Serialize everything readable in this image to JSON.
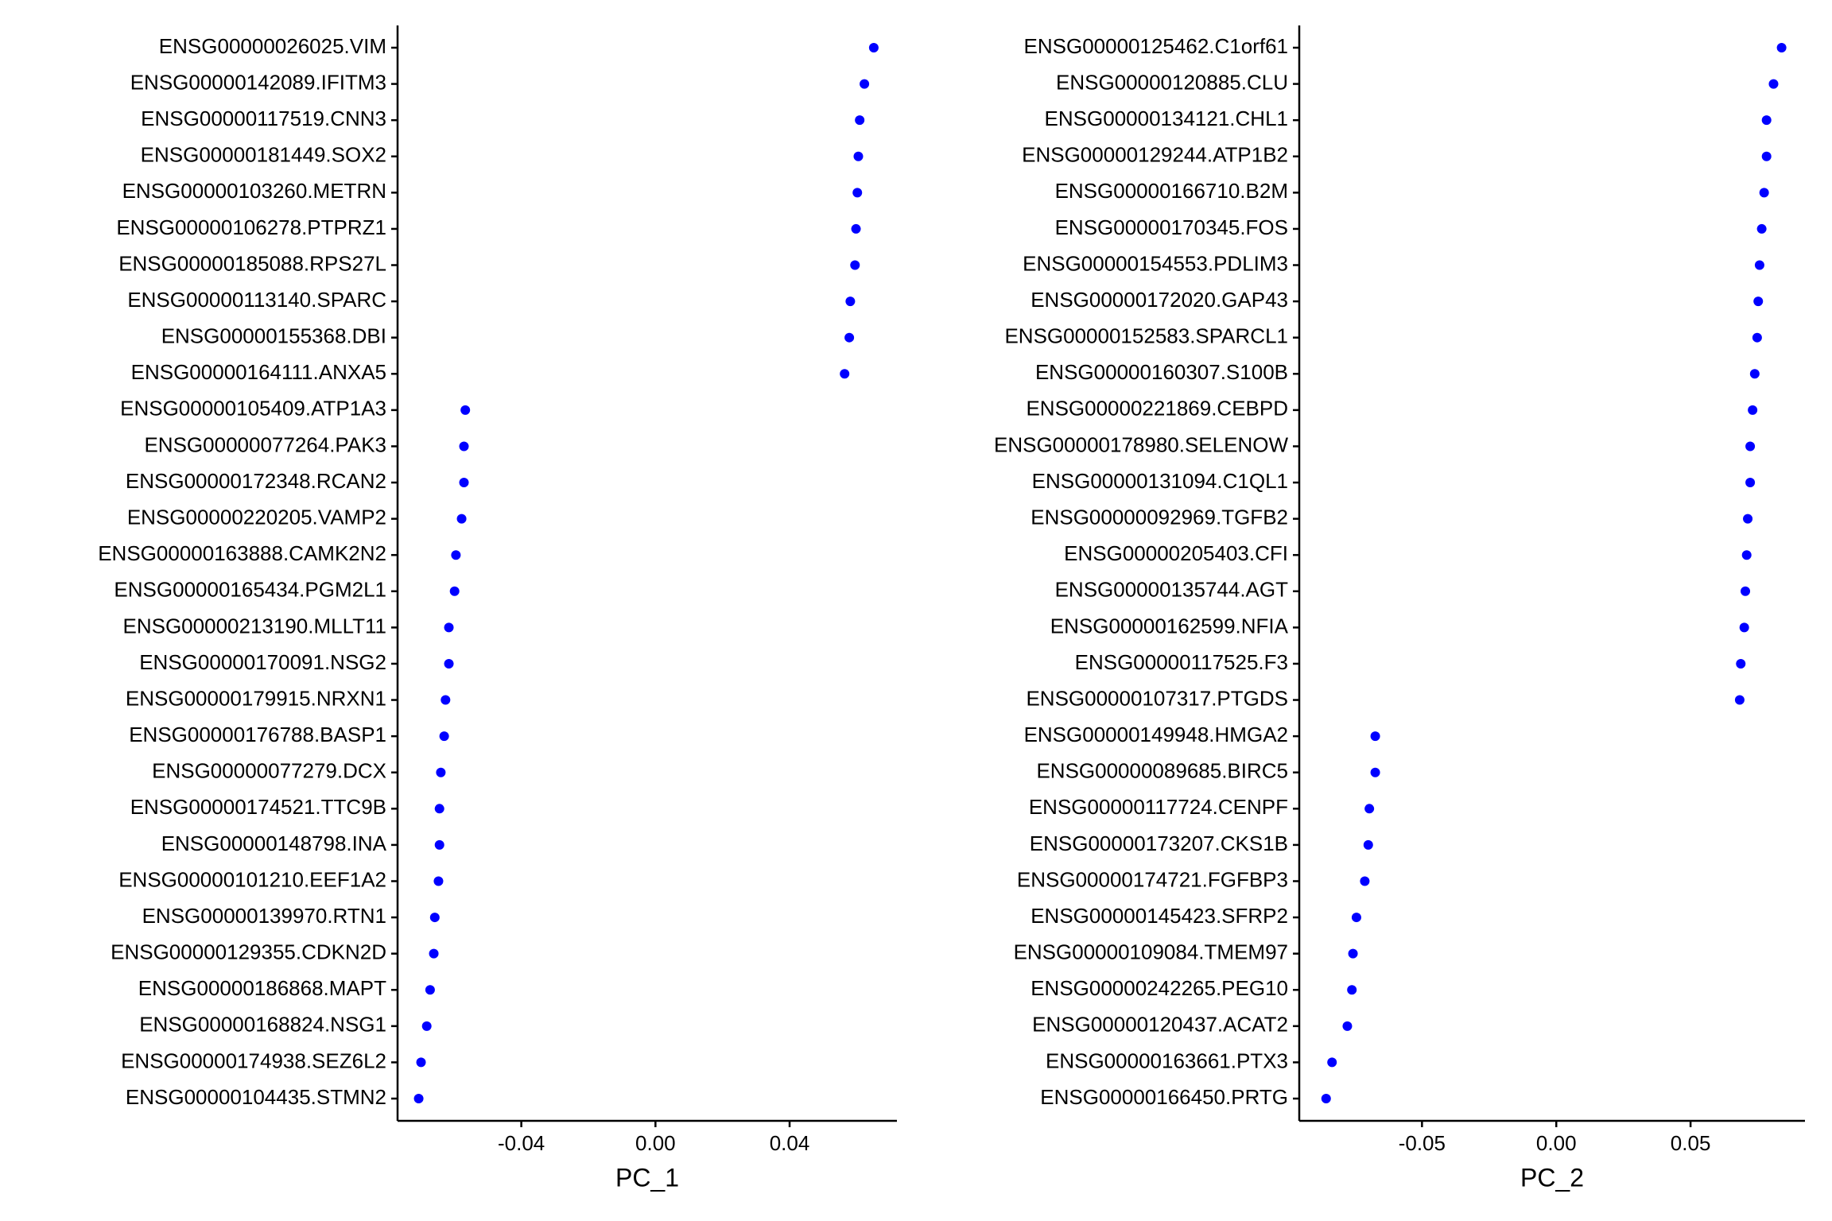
{
  "chart_data": [
    {
      "type": "dot",
      "x_label": "PC_1",
      "color": "#0000ff",
      "categories": [
        "ENSG00000026025.VIM",
        "ENSG00000142089.IFITM3",
        "ENSG00000117519.CNN3",
        "ENSG00000181449.SOX2",
        "ENSG00000103260.METRN",
        "ENSG00000106278.PTPRZ1",
        "ENSG00000185088.RPS27L",
        "ENSG00000113140.SPARC",
        "ENSG00000155368.DBI",
        "ENSG00000164111.ANXA5",
        "ENSG00000105409.ATP1A3",
        "ENSG00000077264.PAK3",
        "ENSG00000172348.RCAN2",
        "ENSG00000220205.VAMP2",
        "ENSG00000163888.CAMK2N2",
        "ENSG00000165434.PGM2L1",
        "ENSG00000213190.MLLT11",
        "ENSG00000170091.NSG2",
        "ENSG00000179915.NRXN1",
        "ENSG00000176788.BASP1",
        "ENSG00000077279.DCX",
        "ENSG00000174521.TTC9B",
        "ENSG00000148798.INA",
        "ENSG00000101210.EEF1A2",
        "ENSG00000139970.RTN1",
        "ENSG00000129355.CDKN2D",
        "ENSG00000186868.MAPT",
        "ENSG00000168824.NSG1",
        "ENSG00000174938.SEZ6L2",
        "ENSG00000104435.STMN2"
      ],
      "values": [
        0.0651,
        0.0623,
        0.0609,
        0.0605,
        0.0602,
        0.0598,
        0.0595,
        0.0581,
        0.0578,
        0.0564,
        -0.0567,
        -0.0571,
        -0.0571,
        -0.0578,
        -0.0595,
        -0.0599,
        -0.0616,
        -0.0616,
        -0.0626,
        -0.063,
        -0.064,
        -0.0644,
        -0.0644,
        -0.0647,
        -0.0658,
        -0.0661,
        -0.0672,
        -0.0682,
        -0.0699,
        -0.0706
      ],
      "xlim": [
        -0.0769,
        0.072
      ],
      "xticks": [
        -0.04,
        {
          "value": 0,
          "label": "0.00"
        },
        0.04
      ]
    },
    {
      "type": "dot",
      "x_label": "PC_2",
      "color": "#0000ff",
      "categories": [
        "ENSG00000125462.C1orf61",
        "ENSG00000120885.CLU",
        "ENSG00000134121.CHL1",
        "ENSG00000129244.ATP1B2",
        "ENSG00000166710.B2M",
        "ENSG00000170345.FOS",
        "ENSG00000154553.PDLIM3",
        "ENSG00000172020.GAP43",
        "ENSG00000152583.SPARCL1",
        "ENSG00000160307.S100B",
        "ENSG00000221869.CEBPD",
        "ENSG00000178980.SELENOW",
        "ENSG00000131094.C1QL1",
        "ENSG00000092969.TGFB2",
        "ENSG00000205403.CFI",
        "ENSG00000135744.AGT",
        "ENSG00000162599.NFIA",
        "ENSG00000117525.F3",
        "ENSG00000107317.PTGDS",
        "ENSG00000149948.HMGA2",
        "ENSG00000089685.BIRC5",
        "ENSG00000117724.CENPF",
        "ENSG00000173207.CKS1B",
        "ENSG00000174721.FGFBP3",
        "ENSG00000145423.SFRP2",
        "ENSG00000109084.TMEM97",
        "ENSG00000242265.PEG10",
        "ENSG00000120437.ACAT2",
        "ENSG00000163661.PTX3",
        "ENSG00000166450.PRTG"
      ],
      "values": [
        0.0839,
        0.0809,
        0.0783,
        0.0783,
        0.0774,
        0.0765,
        0.0757,
        0.0752,
        0.0748,
        0.0739,
        0.0731,
        0.0722,
        0.0722,
        0.0713,
        0.0709,
        0.0704,
        0.07,
        0.0687,
        0.0683,
        -0.0674,
        -0.0674,
        -0.0696,
        -0.07,
        -0.0713,
        -0.0744,
        -0.0757,
        -0.0761,
        -0.0778,
        -0.0835,
        -0.0857
      ],
      "xlim": [
        -0.0957,
        0.0926
      ],
      "xticks": [
        -0.05,
        {
          "value": 0,
          "label": "0.00"
        },
        0.05
      ]
    }
  ]
}
